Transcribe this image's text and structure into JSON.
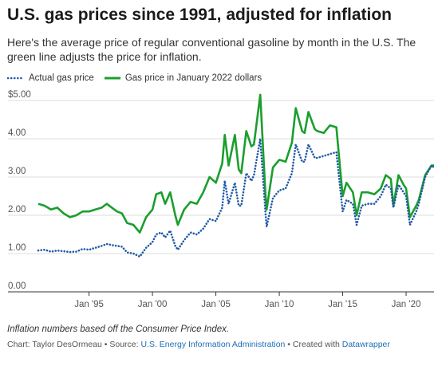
{
  "title": "U.S. gas prices since 1991, adjusted for inflation",
  "subtitle": "Here's the average price of regular conventional gasoline by month in the U.S. The green line adjusts the price for inflation.",
  "legend": [
    {
      "label": "Actual gas price",
      "color": "#1f5aa6",
      "style": "dotted"
    },
    {
      "label": "Gas price in January 2022 dollars",
      "color": "#1b9e2e",
      "style": "solid"
    }
  ],
  "notes": "Inflation numbers based off the Consumer Price Index.",
  "footer": {
    "prefix": "Chart: Taylor DesOrmeau • Source: ",
    "source": "U.S. Energy Information Administration",
    "middle": " • Created with ",
    "tool": "Datawrapper"
  },
  "chart_data": {
    "type": "line",
    "xlim": [
      1991.0,
      2022.2
    ],
    "ylim": [
      0,
      5
    ],
    "y_ticks": [
      0,
      1,
      2,
      3,
      4,
      5
    ],
    "y_tick_labels": [
      "0.00",
      "1.00",
      "2.00",
      "3.00",
      "4.00",
      "$5.00"
    ],
    "x_ticks": [
      1995.0,
      2000.0,
      2005.0,
      2010.0,
      2015.0,
      2020.0
    ],
    "x_tick_labels": [
      "Jan '95",
      "Jan '00",
      "Jan '05",
      "Jan '10",
      "Jan '15",
      "Jan '20"
    ],
    "grid": true,
    "legend_position": "top-left",
    "series": [
      {
        "name": "Actual gas price",
        "color": "#1f5aa6",
        "x": [
          1991.0,
          1991.5,
          1992.0,
          1992.5,
          1993.0,
          1993.5,
          1994.0,
          1994.5,
          1995.0,
          1995.5,
          1996.0,
          1996.4,
          1996.8,
          1997.2,
          1997.6,
          1998.0,
          1998.5,
          1999.0,
          1999.5,
          2000.0,
          2000.3,
          2000.7,
          2001.0,
          2001.4,
          2001.8,
          2002.0,
          2002.5,
          2003.0,
          2003.5,
          2004.0,
          2004.5,
          2005.0,
          2005.5,
          2005.7,
          2006.0,
          2006.5,
          2006.8,
          2007.0,
          2007.4,
          2007.8,
          2008.0,
          2008.5,
          2008.9,
          2009.0,
          2009.5,
          2010.0,
          2010.5,
          2011.0,
          2011.3,
          2011.8,
          2012.0,
          2012.3,
          2012.8,
          2013.0,
          2013.5,
          2014.0,
          2014.5,
          2015.0,
          2015.3,
          2015.8,
          2016.1,
          2016.5,
          2017.0,
          2017.5,
          2018.0,
          2018.4,
          2018.8,
          2019.0,
          2019.4,
          2019.8,
          2020.0,
          2020.3,
          2020.8,
          2021.0,
          2021.5,
          2022.0,
          2022.2
        ],
        "y": [
          1.08,
          1.1,
          1.05,
          1.08,
          1.06,
          1.04,
          1.05,
          1.12,
          1.1,
          1.15,
          1.2,
          1.25,
          1.22,
          1.2,
          1.18,
          1.03,
          1.0,
          0.92,
          1.15,
          1.3,
          1.5,
          1.55,
          1.42,
          1.6,
          1.2,
          1.1,
          1.35,
          1.55,
          1.5,
          1.65,
          1.9,
          1.85,
          2.2,
          2.9,
          2.3,
          2.85,
          2.25,
          2.25,
          3.1,
          2.9,
          3.05,
          4.0,
          2.1,
          1.7,
          2.45,
          2.65,
          2.7,
          3.1,
          3.85,
          3.4,
          3.4,
          3.85,
          3.5,
          3.5,
          3.55,
          3.6,
          3.65,
          2.1,
          2.4,
          2.3,
          1.75,
          2.25,
          2.3,
          2.3,
          2.5,
          2.8,
          2.7,
          2.2,
          2.8,
          2.6,
          2.5,
          1.75,
          2.1,
          2.3,
          3.0,
          3.3,
          3.25
        ]
      },
      {
        "name": "Gas price in January 2022 dollars",
        "color": "#1b9e2e",
        "x": [
          1991.0,
          1991.5,
          1992.0,
          1992.5,
          1993.0,
          1993.5,
          1994.0,
          1994.5,
          1995.0,
          1995.5,
          1996.0,
          1996.4,
          1996.8,
          1997.2,
          1997.6,
          1998.0,
          1998.5,
          1999.0,
          1999.5,
          2000.0,
          2000.3,
          2000.7,
          2001.0,
          2001.4,
          2001.8,
          2002.0,
          2002.5,
          2003.0,
          2003.5,
          2004.0,
          2004.5,
          2005.0,
          2005.5,
          2005.7,
          2006.0,
          2006.5,
          2006.8,
          2007.0,
          2007.4,
          2007.8,
          2008.0,
          2008.5,
          2008.9,
          2009.0,
          2009.5,
          2010.0,
          2010.5,
          2011.0,
          2011.3,
          2011.8,
          2012.0,
          2012.3,
          2012.8,
          2013.0,
          2013.5,
          2014.0,
          2014.5,
          2015.0,
          2015.3,
          2015.8,
          2016.1,
          2016.5,
          2017.0,
          2017.5,
          2018.0,
          2018.4,
          2018.8,
          2019.0,
          2019.4,
          2019.8,
          2020.0,
          2020.3,
          2020.8,
          2021.0,
          2021.5,
          2022.0,
          2022.2
        ],
        "y": [
          2.3,
          2.25,
          2.15,
          2.2,
          2.05,
          1.95,
          2.0,
          2.1,
          2.1,
          2.15,
          2.2,
          2.3,
          2.2,
          2.1,
          2.05,
          1.8,
          1.75,
          1.55,
          1.95,
          2.15,
          2.55,
          2.6,
          2.3,
          2.6,
          2.0,
          1.75,
          2.15,
          2.35,
          2.3,
          2.6,
          3.0,
          2.85,
          3.35,
          4.1,
          3.3,
          4.1,
          3.2,
          3.1,
          4.2,
          3.8,
          3.85,
          5.15,
          2.6,
          2.15,
          3.25,
          3.45,
          3.4,
          3.9,
          4.8,
          4.2,
          4.15,
          4.7,
          4.25,
          4.2,
          4.15,
          4.35,
          4.3,
          2.5,
          2.85,
          2.6,
          2.0,
          2.6,
          2.6,
          2.55,
          2.7,
          3.05,
          2.95,
          2.25,
          3.05,
          2.8,
          2.7,
          1.95,
          2.25,
          2.4,
          3.05,
          3.3,
          3.3
        ]
      }
    ]
  }
}
